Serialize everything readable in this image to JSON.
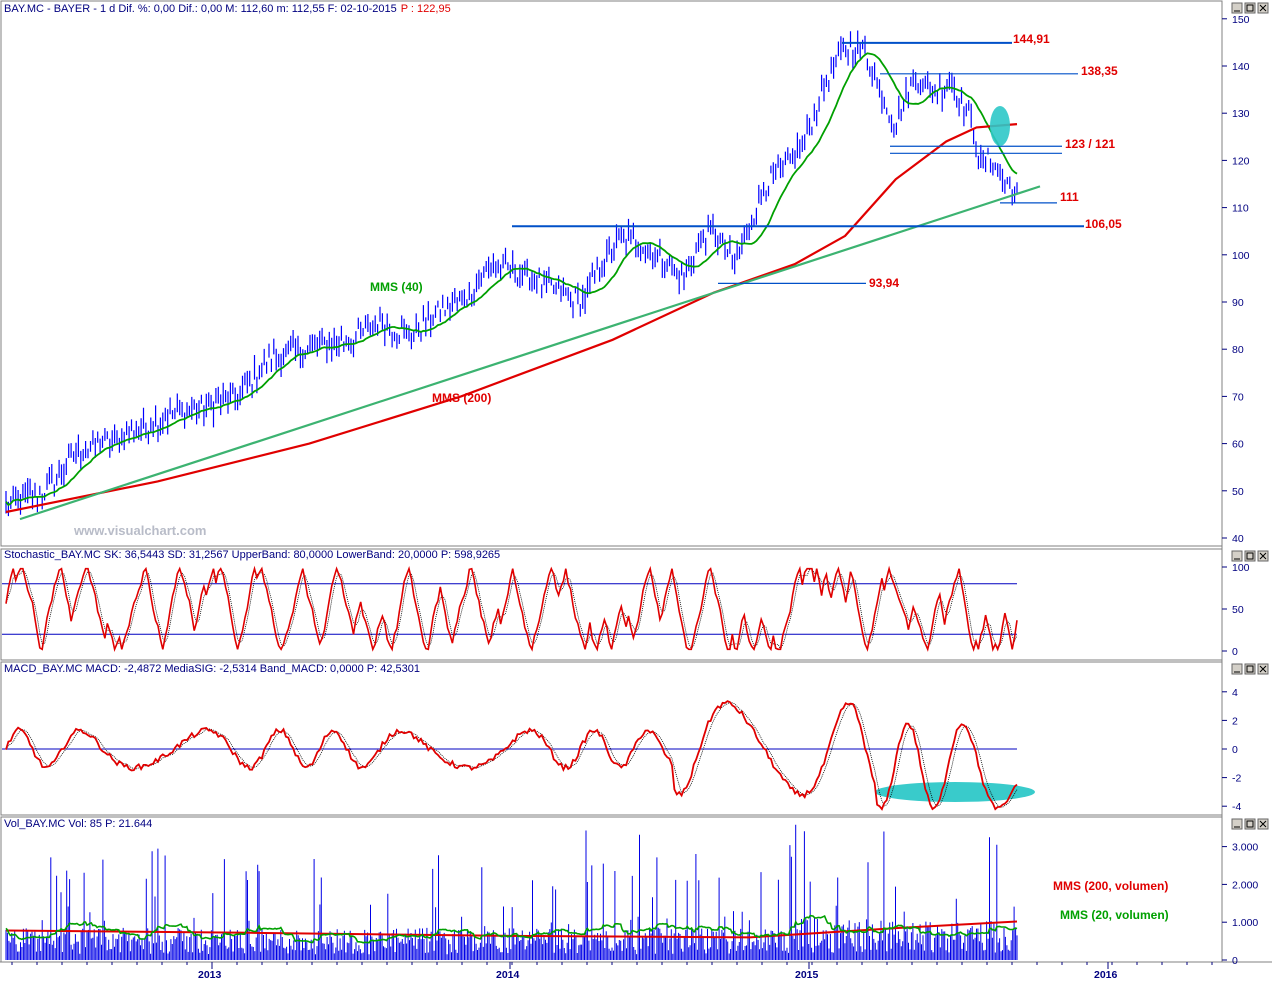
{
  "colors": {
    "price": "#0000ff",
    "mms40": "#00a000",
    "mms200": "#e00000",
    "trend": "#3cb371",
    "levels": "#0050c8",
    "cyan": "#2ec8c8",
    "osc": "#e00000",
    "band": "#0000c0",
    "axis": "#000080",
    "watermark": "#b8bcc8"
  },
  "price_panel": {
    "title_prefix": "BAY.MC - BAYER - 1 d Dif. %: 0,00 Dif.: 0,00 M: 112,60 m: 112,55 F: 02-10-2015",
    "title_suffix": "P : 122,95",
    "watermark": "www.visualchart.com",
    "label_mms40": "MMS (40)",
    "label_mms200": "MMS (200)",
    "levels": [
      {
        "label": "144,91",
        "value": 144.91
      },
      {
        "label": "138,35",
        "value": 138.35
      },
      {
        "label": "123 / 121",
        "value": 123
      },
      {
        "label": "111",
        "value": 111
      },
      {
        "label": "106,05",
        "value": 106.05
      },
      {
        "label": "93,94",
        "value": 93.94
      }
    ]
  },
  "stoch_panel": {
    "title": "Stochastic_BAY.MC SK: 36,5443 SD: 31,2567 UpperBand: 80,0000 LowerBand: 20,0000 P: 598,9265"
  },
  "macd_panel": {
    "title": "MACD_BAY.MC MACD: -2,4872 MediaSIG: -2,5314 Band_MACD: 0,0000 P: 42,5301"
  },
  "vol_panel": {
    "title": "Vol_BAY.MC Vol: 85 P: 21.644",
    "label_mms200": "MMS (200, volumen)",
    "label_mms20": "MMS (20, volumen)"
  },
  "x_axis": {
    "years": [
      "2013",
      "2014",
      "2015",
      "2016"
    ]
  },
  "chart_data": [
    {
      "type": "line",
      "title": "BAY.MC - BAYER",
      "x_range": [
        "2012-06",
        "2015-10"
      ],
      "ylim": [
        38,
        150
      ],
      "yticks": [
        40,
        50,
        60,
        70,
        80,
        90,
        100,
        110,
        120,
        130,
        140,
        150
      ],
      "series": [
        {
          "name": "",
          "x": [
            "2012-06",
            "2012-09",
            "2012-12",
            "2013-03",
            "2013-06",
            "2013-09",
            "2013-12",
            "2014-03",
            "2014-06",
            "2014-09",
            "2014-12",
            "2015-03",
            "2015-06",
            "2015-08",
            "2015-10"
          ],
          "values": [
            47,
            58,
            66,
            74,
            82,
            88,
            97,
            92,
            104,
            95,
            112,
            144,
            132,
            128,
            113
          ]
        },
        {
          "name": "MMS (40)",
          "x": [
            "2012-06",
            "2012-09",
            "2012-12",
            "2013-03",
            "2013-06",
            "2013-09",
            "2013-12",
            "2014-03",
            "2014-06",
            "2014-09",
            "2014-12",
            "2015-03",
            "2015-06",
            "2015-08",
            "2015-10"
          ],
          "values": [
            46,
            55,
            63,
            71,
            78,
            85,
            92,
            94,
            103,
            97,
            108,
            138,
            130,
            131,
            121
          ]
        },
        {
          "name": "MMS (200)",
          "x": [
            "2012-06",
            "2012-12",
            "2013-06",
            "2013-12",
            "2014-06",
            "2014-12",
            "2015-03",
            "2015-06",
            "2015-09",
            "2015-10"
          ],
          "values": [
            45.5,
            55,
            68,
            80,
            91,
            100,
            112,
            125,
            128,
            128
          ]
        }
      ],
      "annotations": [
        "144,91",
        "138,35",
        "123 / 121",
        "111",
        "106,05",
        "93,94"
      ]
    },
    {
      "type": "line",
      "title": "Stochastic_BAY.MC",
      "ylim": [
        -5,
        105
      ],
      "yticks": [
        0,
        50,
        100
      ],
      "bands": [
        20,
        80
      ],
      "series": [
        {
          "name": "SK",
          "last": 36.5443
        },
        {
          "name": "SD",
          "last": 31.2567
        }
      ]
    },
    {
      "type": "line",
      "title": "MACD_BAY.MC",
      "ylim": [
        -5,
        5
      ],
      "yticks": [
        -4,
        -2,
        0,
        2,
        4
      ],
      "series": [
        {
          "name": "MACD",
          "last": -2.4872
        },
        {
          "name": "MediaSIG",
          "last": -2.5314
        }
      ]
    },
    {
      "type": "bar",
      "title": "Vol_BAY.MC",
      "ylim": [
        0,
        3500
      ],
      "yticks": [
        "0",
        "1.000",
        "2.000",
        "3.000"
      ],
      "series": [
        {
          "name": "MMS (200, volumen)",
          "level": 1000
        },
        {
          "name": "MMS (20, volumen)",
          "last": 500
        }
      ]
    }
  ]
}
